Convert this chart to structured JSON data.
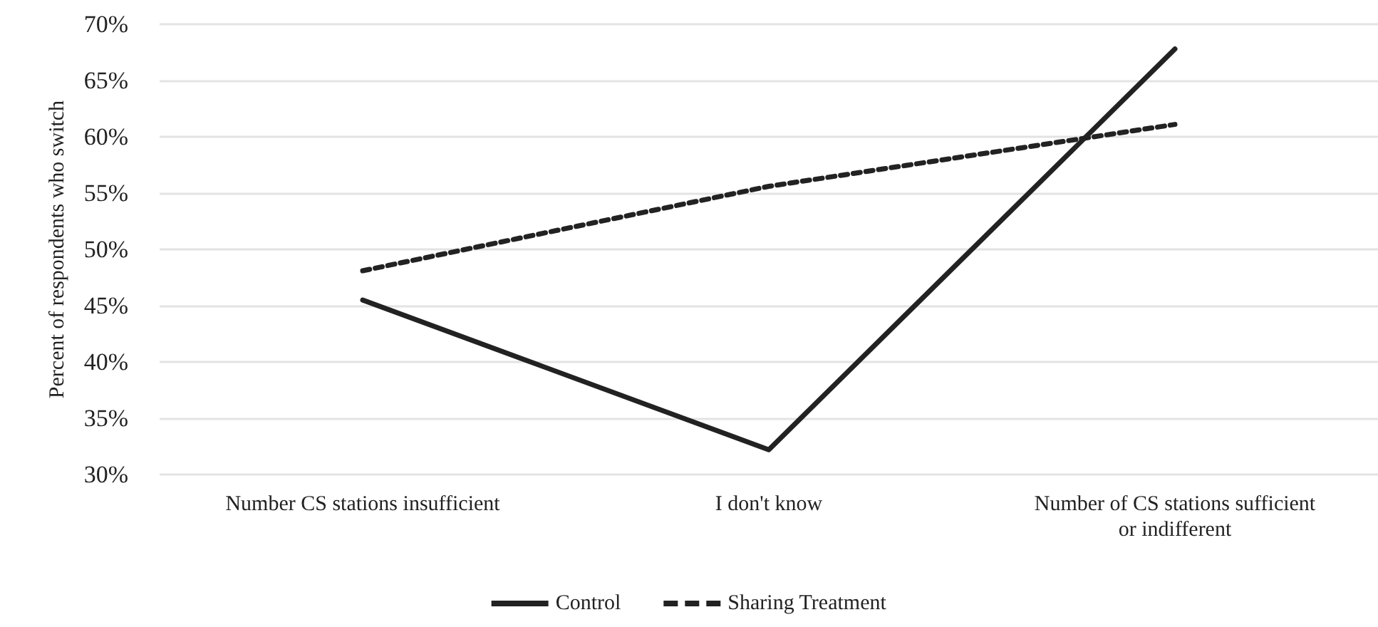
{
  "chart_data": {
    "type": "line",
    "ylabel": "Percent of respondents who switch",
    "categories": [
      "Number CS stations insufficient",
      "I don't know",
      "Number of CS stations sufficient\nor indifferent"
    ],
    "series": [
      {
        "name": "Control",
        "color": "#222222",
        "values": [
          45.5,
          32.2,
          67.8
        ],
        "line_style": "solid"
      },
      {
        "name": "Sharing Treatment",
        "color": "#222222",
        "values": [
          48.1,
          55.6,
          61.1
        ],
        "line_style": "dashed"
      }
    ],
    "ylim": [
      30,
      70
    ],
    "yticks": [
      {
        "value": 30,
        "label": "30%"
      },
      {
        "value": 35,
        "label": "35%"
      },
      {
        "value": 40,
        "label": "40%"
      },
      {
        "value": 45,
        "label": "45%"
      },
      {
        "value": 50,
        "label": "50%"
      },
      {
        "value": 55,
        "label": "55%"
      },
      {
        "value": 60,
        "label": "60%"
      },
      {
        "value": 65,
        "label": "65%"
      },
      {
        "value": 70,
        "label": "70%"
      }
    ],
    "grid": "y",
    "legend": "bottom",
    "marker": "none"
  }
}
